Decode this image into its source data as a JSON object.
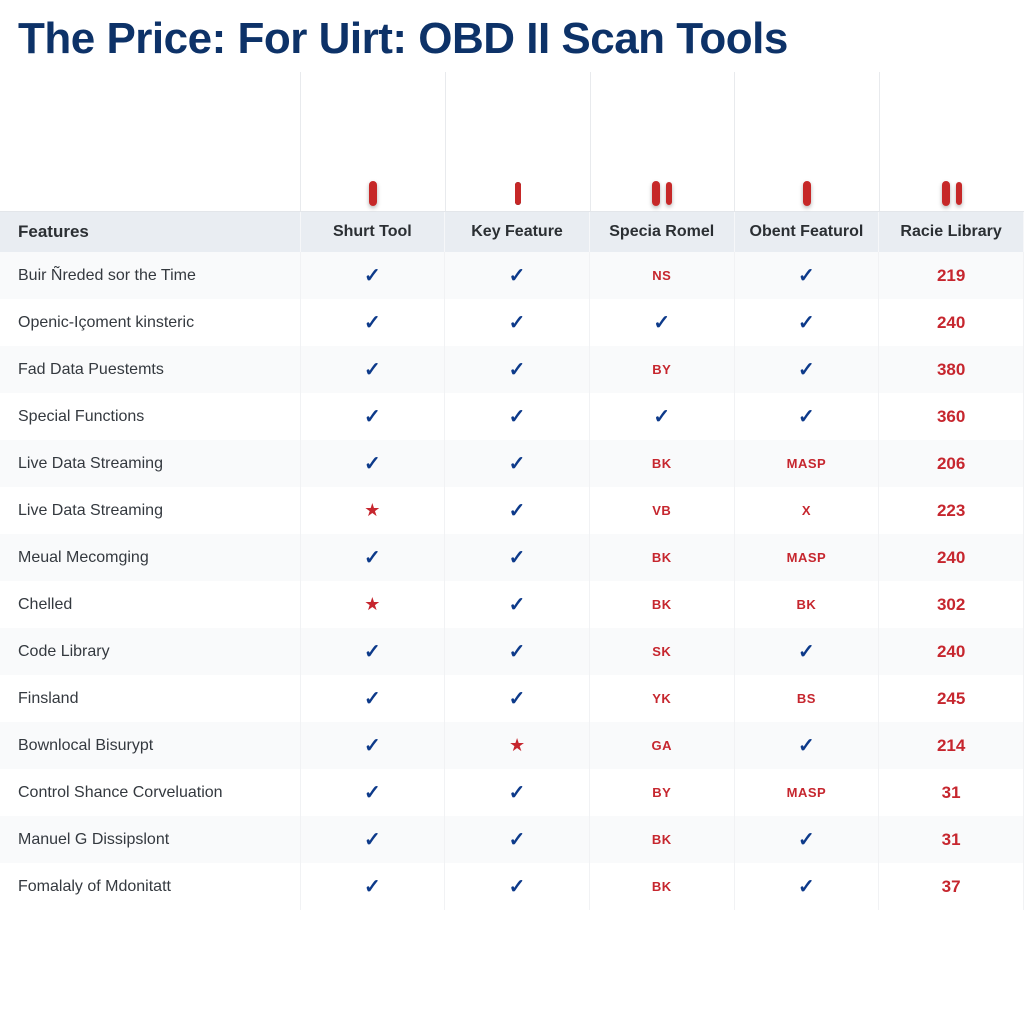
{
  "title": "The Price: For Uirt: OBD II Scan Tools",
  "colors": {
    "title": "#0d3268",
    "header_bg": "#e9edf2",
    "row_odd": "#f9fafb",
    "row_even": "#ffffff",
    "check_blue": "#0d3a8a",
    "red": "#c6262e",
    "border": "#e3e6ea"
  },
  "columns": [
    {
      "key": "feature",
      "label": "Features"
    },
    {
      "key": "p1",
      "label": "Shurt Tool"
    },
    {
      "key": "p2",
      "label": "Key Feature"
    },
    {
      "key": "p3",
      "label": "Specia Romel"
    },
    {
      "key": "p4",
      "label": "Obent Featurol"
    },
    {
      "key": "p5",
      "label": "Racie Library"
    }
  ],
  "rows": [
    {
      "feature": "Buir Ñreded sor the Time",
      "cells": [
        {
          "t": "check"
        },
        {
          "t": "check"
        },
        {
          "t": "redtxt",
          "v": "NS"
        },
        {
          "t": "check"
        },
        {
          "t": "rednum",
          "v": "219"
        }
      ]
    },
    {
      "feature": "Openic-Içoment kinsteric",
      "cells": [
        {
          "t": "check"
        },
        {
          "t": "check"
        },
        {
          "t": "check"
        },
        {
          "t": "check"
        },
        {
          "t": "rednum",
          "v": "240"
        }
      ]
    },
    {
      "feature": "Fad Data Puestemts",
      "cells": [
        {
          "t": "check"
        },
        {
          "t": "check"
        },
        {
          "t": "redtxt",
          "v": "BY"
        },
        {
          "t": "check"
        },
        {
          "t": "rednum",
          "v": "380"
        }
      ]
    },
    {
      "feature": "Special Functions",
      "cells": [
        {
          "t": "check"
        },
        {
          "t": "check"
        },
        {
          "t": "check"
        },
        {
          "t": "check"
        },
        {
          "t": "rednum",
          "v": "360"
        }
      ]
    },
    {
      "feature": "Live Data Streaming",
      "cells": [
        {
          "t": "check"
        },
        {
          "t": "check"
        },
        {
          "t": "redtxt",
          "v": "BK"
        },
        {
          "t": "redtxt",
          "v": "MASP"
        },
        {
          "t": "rednum",
          "v": "206"
        }
      ]
    },
    {
      "feature": "Live Data Streaming",
      "cells": [
        {
          "t": "star"
        },
        {
          "t": "check"
        },
        {
          "t": "redtxt",
          "v": "VB"
        },
        {
          "t": "redtxt",
          "v": "X"
        },
        {
          "t": "rednum",
          "v": "223"
        }
      ]
    },
    {
      "feature": "Meual Mecomging",
      "cells": [
        {
          "t": "check"
        },
        {
          "t": "check"
        },
        {
          "t": "redtxt",
          "v": "BK"
        },
        {
          "t": "redtxt",
          "v": "MASP"
        },
        {
          "t": "rednum",
          "v": "240"
        }
      ]
    },
    {
      "feature": "Chelled",
      "cells": [
        {
          "t": "star"
        },
        {
          "t": "check"
        },
        {
          "t": "redtxt",
          "v": "BK"
        },
        {
          "t": "redtxt",
          "v": "BK"
        },
        {
          "t": "rednum",
          "v": "302"
        }
      ]
    },
    {
      "feature": "Code Library",
      "cells": [
        {
          "t": "check"
        },
        {
          "t": "check"
        },
        {
          "t": "redtxt",
          "v": "SK"
        },
        {
          "t": "check"
        },
        {
          "t": "rednum",
          "v": "240"
        }
      ]
    },
    {
      "feature": "Finsland",
      "cells": [
        {
          "t": "check"
        },
        {
          "t": "check"
        },
        {
          "t": "redtxt",
          "v": "YK"
        },
        {
          "t": "redtxt",
          "v": "BS"
        },
        {
          "t": "rednum",
          "v": "245"
        }
      ]
    },
    {
      "feature": "Bownlocal Bisurypt",
      "cells": [
        {
          "t": "check"
        },
        {
          "t": "star"
        },
        {
          "t": "redtxt",
          "v": "GA"
        },
        {
          "t": "check"
        },
        {
          "t": "rednum",
          "v": "214"
        }
      ]
    },
    {
      "feature": "Control Shance Corveluation",
      "cells": [
        {
          "t": "check"
        },
        {
          "t": "check"
        },
        {
          "t": "redtxt",
          "v": "BY"
        },
        {
          "t": "redtxt",
          "v": "MASP"
        },
        {
          "t": "rednum",
          "v": "31"
        }
      ]
    },
    {
      "feature": "Manuel G Dissipslont",
      "cells": [
        {
          "t": "check"
        },
        {
          "t": "check"
        },
        {
          "t": "redtxt",
          "v": "BK"
        },
        {
          "t": "check"
        },
        {
          "t": "rednum",
          "v": "31"
        }
      ]
    },
    {
      "feature": "Fomalaly of Mdonitatt",
      "cells": [
        {
          "t": "check"
        },
        {
          "t": "check"
        },
        {
          "t": "redtxt",
          "v": "BK"
        },
        {
          "t": "check"
        },
        {
          "t": "rednum",
          "v": "37"
        }
      ]
    }
  ],
  "glyphs": {
    "check": "✓",
    "star": "★"
  }
}
